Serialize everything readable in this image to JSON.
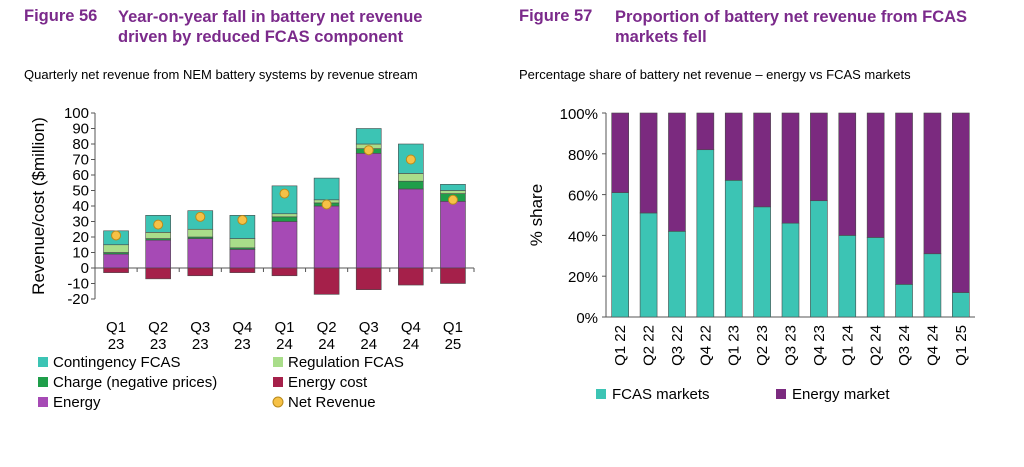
{
  "figure56": {
    "number": "Figure 56",
    "title_line1": "Year-on-year fall in battery net revenue",
    "title_line2": "driven by reduced FCAS component",
    "subtitle": "Quarterly net revenue from NEM battery systems by revenue stream"
  },
  "figure57": {
    "number": "Figure 57",
    "title_line1": "Proportion of battery net revenue from FCAS",
    "title_line2": "markets fell",
    "subtitle": "Percentage share of battery net revenue – energy vs FCAS markets"
  },
  "chart_data": [
    {
      "type": "bar",
      "stacked": true,
      "ylabel": "Revenue/cost ($million)",
      "xlabel": "",
      "ylim": [
        -20,
        100
      ],
      "yticks": [
        -20,
        -10,
        0,
        10,
        20,
        30,
        40,
        50,
        60,
        70,
        80,
        90,
        100
      ],
      "categories": [
        [
          "Q1",
          "23"
        ],
        [
          "Q2",
          "23"
        ],
        [
          "Q3",
          "23"
        ],
        [
          "Q4",
          "23"
        ],
        [
          "Q1",
          "24"
        ],
        [
          "Q2",
          "24"
        ],
        [
          "Q3",
          "24"
        ],
        [
          "Q4",
          "24"
        ],
        [
          "Q1",
          "25"
        ]
      ],
      "series": [
        {
          "name": "Energy",
          "color": "#a64ab5",
          "values": [
            9,
            18,
            19,
            12,
            30,
            40,
            74,
            51,
            43
          ]
        },
        {
          "name": "Charge (negative prices)",
          "color": "#1f9e4a",
          "values": [
            1,
            1,
            1,
            1,
            3,
            2,
            3,
            5,
            5
          ]
        },
        {
          "name": "Regulation FCAS",
          "color": "#a9dd8a",
          "values": [
            5,
            4,
            5,
            6,
            2,
            2,
            3,
            5,
            2
          ]
        },
        {
          "name": "Contingency FCAS",
          "color": "#3cc4b4",
          "values": [
            9,
            11,
            12,
            15,
            18,
            14,
            10,
            19,
            4
          ]
        },
        {
          "name": "Energy cost",
          "color": "#a5204a",
          "values": [
            -3,
            -7,
            -5,
            -3,
            -5,
            -17,
            -14,
            -11,
            -10
          ]
        }
      ],
      "net_revenue": {
        "name": "Net Revenue",
        "color": "#f6c146",
        "values": [
          21,
          28,
          33,
          31,
          48,
          41,
          76,
          70,
          44
        ]
      },
      "legend": [
        {
          "label": "Contingency FCAS",
          "color": "#3cc4b4",
          "shape": "square"
        },
        {
          "label": "Regulation FCAS",
          "color": "#a9dd8a",
          "shape": "square"
        },
        {
          "label": "Charge (negative prices)",
          "color": "#1f9e4a",
          "shape": "square"
        },
        {
          "label": "Energy cost",
          "color": "#a5204a",
          "shape": "square"
        },
        {
          "label": "Energy",
          "color": "#a64ab5",
          "shape": "square"
        },
        {
          "label": "Net Revenue",
          "color": "#f6c146",
          "shape": "circle"
        }
      ],
      "grid": false,
      "legend_position": "bottom"
    },
    {
      "type": "bar",
      "stacked": true,
      "percent": true,
      "ylabel": "% share",
      "xlabel": "",
      "ylim": [
        0,
        100
      ],
      "yticks": [
        "0%",
        "20%",
        "40%",
        "60%",
        "80%",
        "100%"
      ],
      "categories": [
        "Q1 22",
        "Q2 22",
        "Q3 22",
        "Q4 22",
        "Q1 23",
        "Q2 23",
        "Q3 23",
        "Q4 23",
        "Q1 24",
        "Q2 24",
        "Q3 24",
        "Q4 24",
        "Q1 25"
      ],
      "series": [
        {
          "name": "FCAS markets",
          "color": "#3cc4b4",
          "values": [
            61,
            51,
            42,
            82,
            67,
            54,
            46,
            57,
            40,
            39,
            16,
            31,
            12
          ]
        },
        {
          "name": "Energy market",
          "color": "#7b2a7f",
          "values": [
            39,
            49,
            58,
            18,
            33,
            46,
            54,
            43,
            60,
            61,
            84,
            69,
            88
          ]
        }
      ],
      "grid": false,
      "legend_position": "bottom"
    }
  ]
}
